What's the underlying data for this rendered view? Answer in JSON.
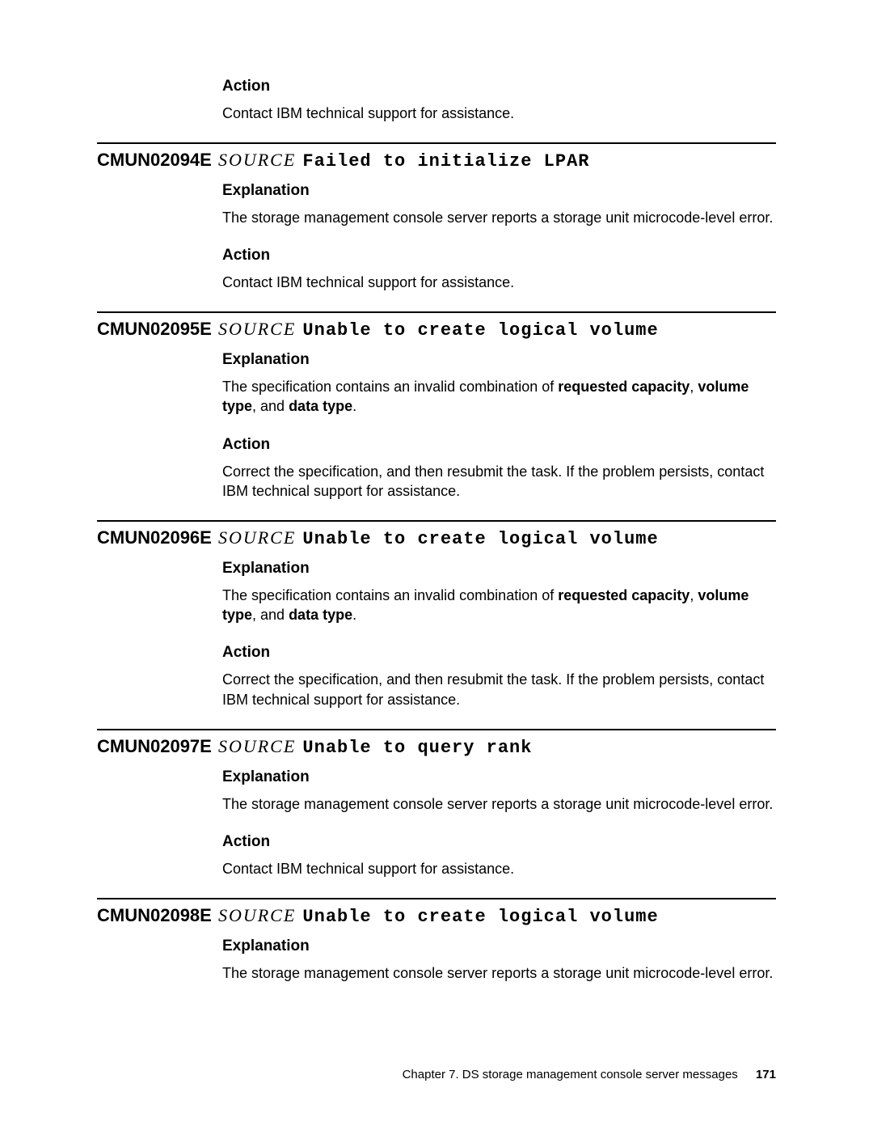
{
  "labels": {
    "action": "Action",
    "explanation": "Explanation"
  },
  "intro": {
    "action_text": "Contact IBM technical support for assistance."
  },
  "messages": [
    {
      "code": "CMUN02094E",
      "source": "SOURCE",
      "title": "Failed to initialize LPAR",
      "explanation_plain": "The storage management console server reports a storage unit microcode-level error.",
      "action_plain": "Contact IBM technical support for assistance."
    },
    {
      "code": "CMUN02095E",
      "source": "SOURCE",
      "title": "Unable to create logical volume",
      "explanation_pre": "The specification contains an invalid combination of ",
      "explanation_bold1": "requested capacity",
      "explanation_mid1": ", ",
      "explanation_bold2": "volume type",
      "explanation_mid2": ", and ",
      "explanation_bold3": "data type",
      "explanation_post": ".",
      "action_plain": "Correct the specification, and then resubmit the task. If the problem persists, contact IBM technical support for assistance."
    },
    {
      "code": "CMUN02096E",
      "source": "SOURCE",
      "title": "Unable to create logical volume",
      "explanation_pre": "The specification contains an invalid combination of ",
      "explanation_bold1": "requested capacity",
      "explanation_mid1": ", ",
      "explanation_bold2": "volume type",
      "explanation_mid2": ", and ",
      "explanation_bold3": "data type",
      "explanation_post": ".",
      "action_plain": "Correct the specification, and then resubmit the task. If the problem persists, contact IBM technical support for assistance."
    },
    {
      "code": "CMUN02097E",
      "source": "SOURCE",
      "title": "Unable to query rank",
      "explanation_plain": "The storage management console server reports a storage unit microcode-level error.",
      "action_plain": "Contact IBM technical support for assistance."
    },
    {
      "code": "CMUN02098E",
      "source": "SOURCE",
      "title": "Unable to create logical volume",
      "explanation_plain": "The storage management console server reports a storage unit microcode-level error."
    }
  ],
  "footer": {
    "chapter": "Chapter 7. DS storage management console server messages",
    "page": "171"
  }
}
